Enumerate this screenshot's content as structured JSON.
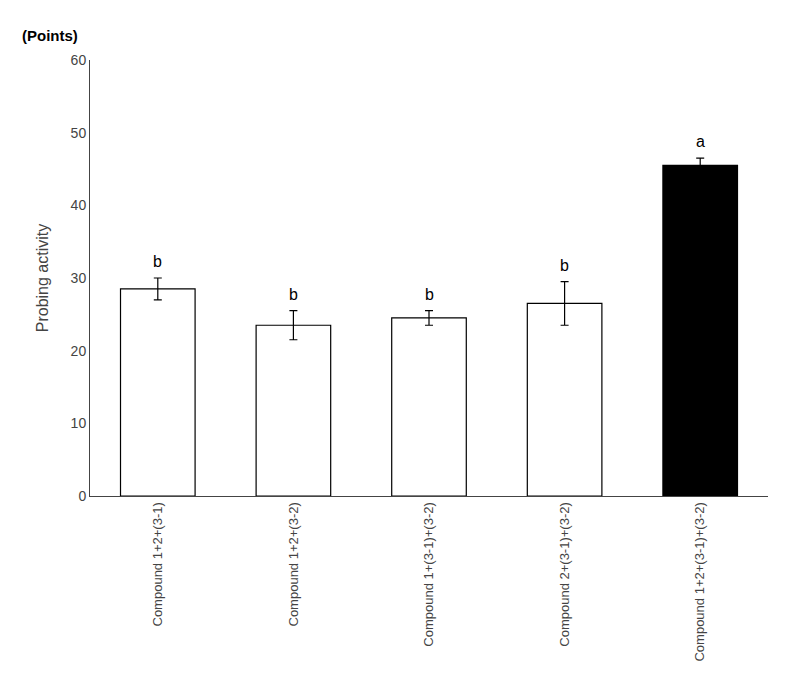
{
  "chart_data": {
    "type": "bar",
    "categories": [
      "Compound 1+2+(3-1)",
      "Compound 1+2+(3-2)",
      "Compound 1+(3-1)+(3-2)",
      "Compound 2+(3-1)+(3-2)",
      "Compound 1+2+(3-1)+(3-2)"
    ],
    "values": [
      28.5,
      23.5,
      24.5,
      26.5,
      45.5
    ],
    "errors": [
      1.5,
      2.0,
      1.0,
      3.0,
      1.0
    ],
    "colors": [
      "white",
      "white",
      "white",
      "white",
      "black"
    ],
    "annotations": [
      "b",
      "b",
      "b",
      "b",
      "a"
    ],
    "ylabel": "Probing activity",
    "unit_label": "(Points)",
    "ylim": [
      0,
      60
    ],
    "yticks": [
      0,
      10,
      20,
      30,
      40,
      50,
      60
    ],
    "grid": false
  }
}
